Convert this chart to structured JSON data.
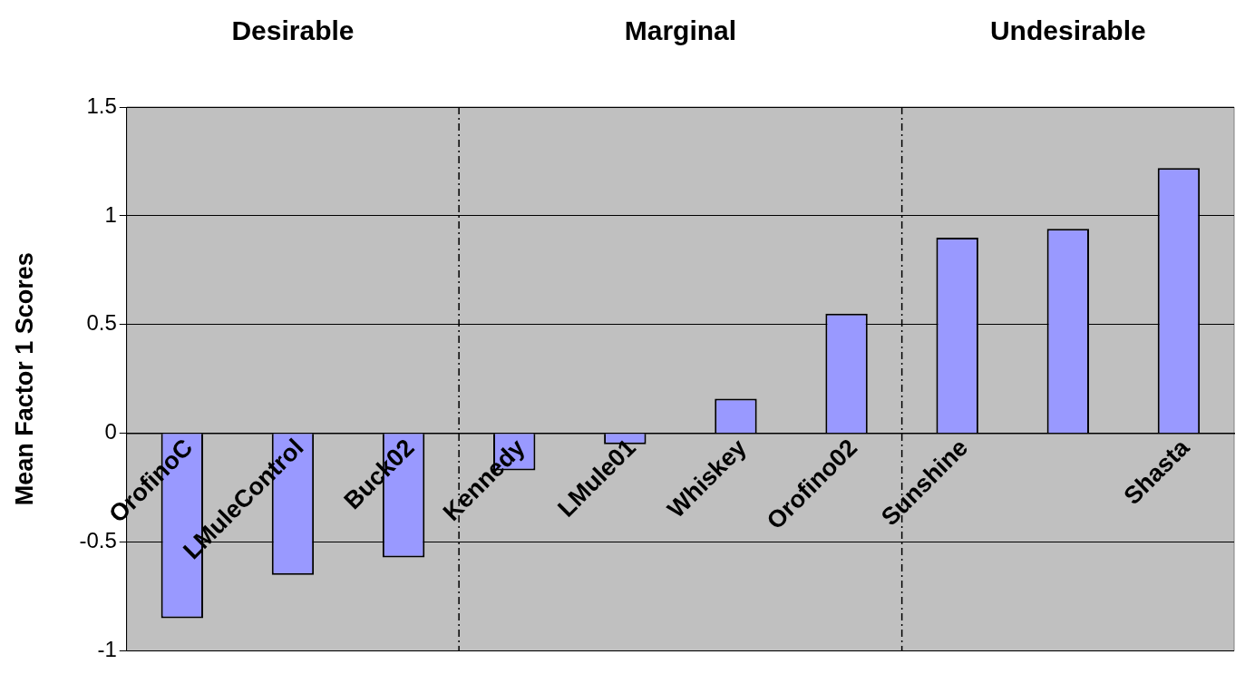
{
  "chart_data": {
    "type": "bar",
    "ylabel": "Mean Factor 1 Scores",
    "categories": [
      "OrofinoC",
      "LMuleControl",
      "Buck02",
      "Kennedy",
      "LMule01",
      "Whiskey",
      "Orofino02",
      "Sunshine",
      null,
      "Shasta"
    ],
    "values": [
      -0.85,
      -0.65,
      -0.57,
      -0.17,
      -0.05,
      0.16,
      0.55,
      0.9,
      0.94,
      1.22
    ],
    "color": "#9999ff",
    "ylim": [
      -1,
      1.5
    ],
    "yticks": [
      -1,
      -0.5,
      0,
      0.5,
      1,
      1.5
    ],
    "grid": "y",
    "legend": false,
    "annotations": [
      "Desirable",
      "Marginal",
      "Undesirable"
    ]
  }
}
